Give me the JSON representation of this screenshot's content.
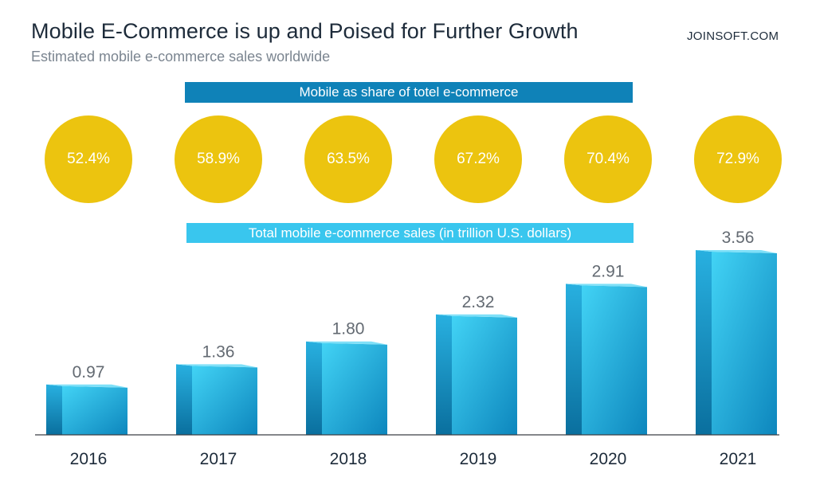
{
  "header": {
    "title": "Mobile E-Commerce is up and Poised for Further Growth",
    "subtitle": "Estimated mobile e-commerce sales worldwide",
    "brand": "JOINSOFT.COM"
  },
  "banners": {
    "share": "Mobile as share of totel e-commerce",
    "sales": "Total mobile e-commerce sales (in trillion U.S. dollars)"
  },
  "colors": {
    "circle": "#ecc40f",
    "share_banner": "#0f82b8",
    "sales_banner": "#39c6ee",
    "bar_light": "#3fd0f3",
    "bar_dark": "#0d86bd"
  },
  "chart_data": {
    "type": "bar",
    "categories": [
      "2016",
      "2017",
      "2018",
      "2019",
      "2020",
      "2021"
    ],
    "values": [
      0.97,
      1.36,
      1.8,
      2.32,
      2.91,
      3.56
    ],
    "value_labels": [
      "0.97",
      "1.36",
      "1.80",
      "2.32",
      "2.91",
      "3.56"
    ],
    "mobile_share": [
      "52.4%",
      "58.9%",
      "63.5%",
      "67.2%",
      "70.4%",
      "72.9%"
    ],
    "ylabel": "",
    "xlabel": "",
    "grid": false
  }
}
